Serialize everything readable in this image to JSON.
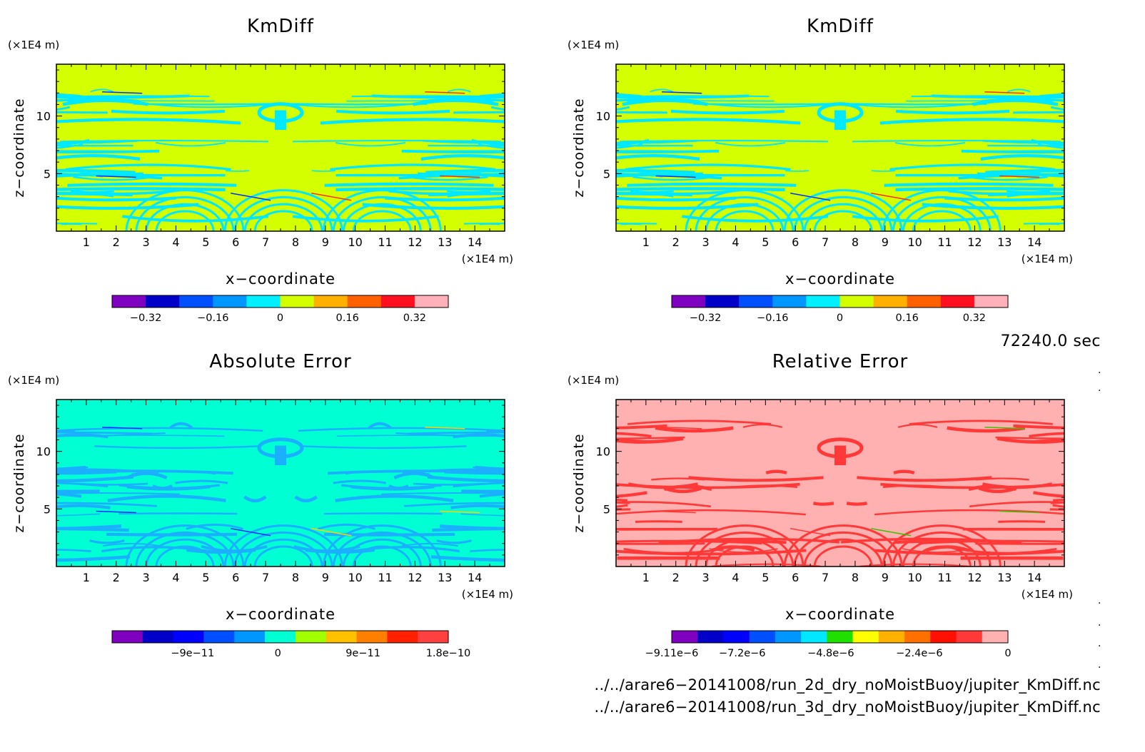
{
  "chart_data": [
    {
      "type": "heatmap",
      "title": "KmDiff",
      "xlabel": "x−coordinate",
      "ylabel": "z−coordinate",
      "x_unit": "(×1E4 m)",
      "y_unit": "(×1E4 m)",
      "xlim": [
        0,
        15
      ],
      "ylim": [
        0,
        14.5
      ],
      "x_ticks": [
        1,
        2,
        3,
        4,
        5,
        6,
        7,
        8,
        9,
        10,
        11,
        12,
        13,
        14
      ],
      "y_ticks": [
        5,
        10
      ],
      "background_color": "#d4ff00",
      "pattern_color": "#00e8ff",
      "accent_colors": [
        "#0030ff",
        "#ff3000"
      ],
      "colorbar": {
        "colors": [
          "#8000c0",
          "#0000c8",
          "#0050ff",
          "#0096ff",
          "#00f0ff",
          "#d4ff00",
          "#ffb000",
          "#ff6000",
          "#ff1020",
          "#ffb0b8"
        ],
        "tick_labels": [
          "−0.32",
          "−0.16",
          "0",
          "0.16",
          "0.32"
        ],
        "tick_values": [
          -0.32,
          -0.16,
          0,
          0.16,
          0.32
        ],
        "range": [
          -0.4,
          0.4
        ]
      }
    },
    {
      "type": "heatmap",
      "title": "KmDiff",
      "xlabel": "x−coordinate",
      "ylabel": "z−coordinate",
      "x_unit": "(×1E4 m)",
      "y_unit": "(×1E4 m)",
      "xlim": [
        0,
        15
      ],
      "ylim": [
        0,
        14.5
      ],
      "x_ticks": [
        1,
        2,
        3,
        4,
        5,
        6,
        7,
        8,
        9,
        10,
        11,
        12,
        13,
        14
      ],
      "y_ticks": [
        5,
        10
      ],
      "background_color": "#d4ff00",
      "pattern_color": "#00e8ff",
      "accent_colors": [
        "#0030ff",
        "#ff3000"
      ],
      "colorbar": {
        "colors": [
          "#8000c0",
          "#0000c8",
          "#0050ff",
          "#0096ff",
          "#00f0ff",
          "#d4ff00",
          "#ffb000",
          "#ff6000",
          "#ff1020",
          "#ffb0b8"
        ],
        "tick_labels": [
          "−0.32",
          "−0.16",
          "0",
          "0.16",
          "0.32"
        ],
        "tick_values": [
          -0.32,
          -0.16,
          0,
          0.16,
          0.32
        ],
        "range": [
          -0.4,
          0.4
        ]
      }
    },
    {
      "type": "heatmap",
      "title": "Absolute Error",
      "xlabel": "x−coordinate",
      "ylabel": "z−coordinate",
      "x_unit": "(×1E4 m)",
      "y_unit": "(×1E4 m)",
      "xlim": [
        0,
        15
      ],
      "ylim": [
        0,
        14.5
      ],
      "x_ticks": [
        1,
        2,
        3,
        4,
        5,
        6,
        7,
        8,
        9,
        10,
        11,
        12,
        13,
        14
      ],
      "y_ticks": [
        5,
        10
      ],
      "background_color": "#00ffd2",
      "pattern_color": "#1ab0ff",
      "accent_colors": [
        "#0030ff",
        "#ffd000"
      ],
      "colorbar": {
        "colors": [
          "#8000c0",
          "#0000c8",
          "#0000ff",
          "#0050ff",
          "#0096ff",
          "#00ffd2",
          "#a0ff00",
          "#ffc000",
          "#ff8000",
          "#ff2000",
          "#ff4040"
        ],
        "tick_labels": [
          "−9e−11",
          "0",
          "9e−11",
          "1.8e−10"
        ],
        "tick_values": [
          -9e-11,
          0,
          9e-11,
          1.8e-10
        ],
        "range": [
          -1.75e-10,
          1.8e-10
        ]
      }
    },
    {
      "type": "heatmap",
      "title": "Relative Error",
      "xlabel": "x−coordinate",
      "ylabel": "z−coordinate",
      "x_unit": "(×1E4 m)",
      "y_unit": "(×1E4 m)",
      "xlim": [
        0,
        15
      ],
      "ylim": [
        0,
        14.5
      ],
      "x_ticks": [
        1,
        2,
        3,
        4,
        5,
        6,
        7,
        8,
        9,
        10,
        11,
        12,
        13,
        14
      ],
      "y_ticks": [
        5,
        10
      ],
      "background_color": "#ffb0b0",
      "pattern_color": "#ff3838",
      "accent_colors": [
        "#ff3838",
        "#40c000"
      ],
      "colorbar": {
        "colors": [
          "#8000c0",
          "#0000c8",
          "#0000ff",
          "#0050ff",
          "#0096ff",
          "#00e8ff",
          "#20e000",
          "#ffff00",
          "#ffb000",
          "#ff7000",
          "#ff1000",
          "#ff3838",
          "#ffb0b0"
        ],
        "tick_labels": [
          "−9.11e−6",
          "−7.2e−6",
          "−4.8e−6",
          "−2.4e−6",
          "0"
        ],
        "tick_values": [
          -9.11e-06,
          -7.2e-06,
          -4.8e-06,
          -2.4e-06,
          0
        ],
        "range": [
          -9.11e-06,
          0
        ]
      }
    }
  ],
  "time_label": "72240.0 sec",
  "files": [
    "../../arare6−20141008/run_2d_dry_noMoistBuoy/jupiter_KmDiff.nc",
    "../../arare6−20141008/run_3d_dry_noMoistBuoy/jupiter_KmDiff.nc"
  ]
}
